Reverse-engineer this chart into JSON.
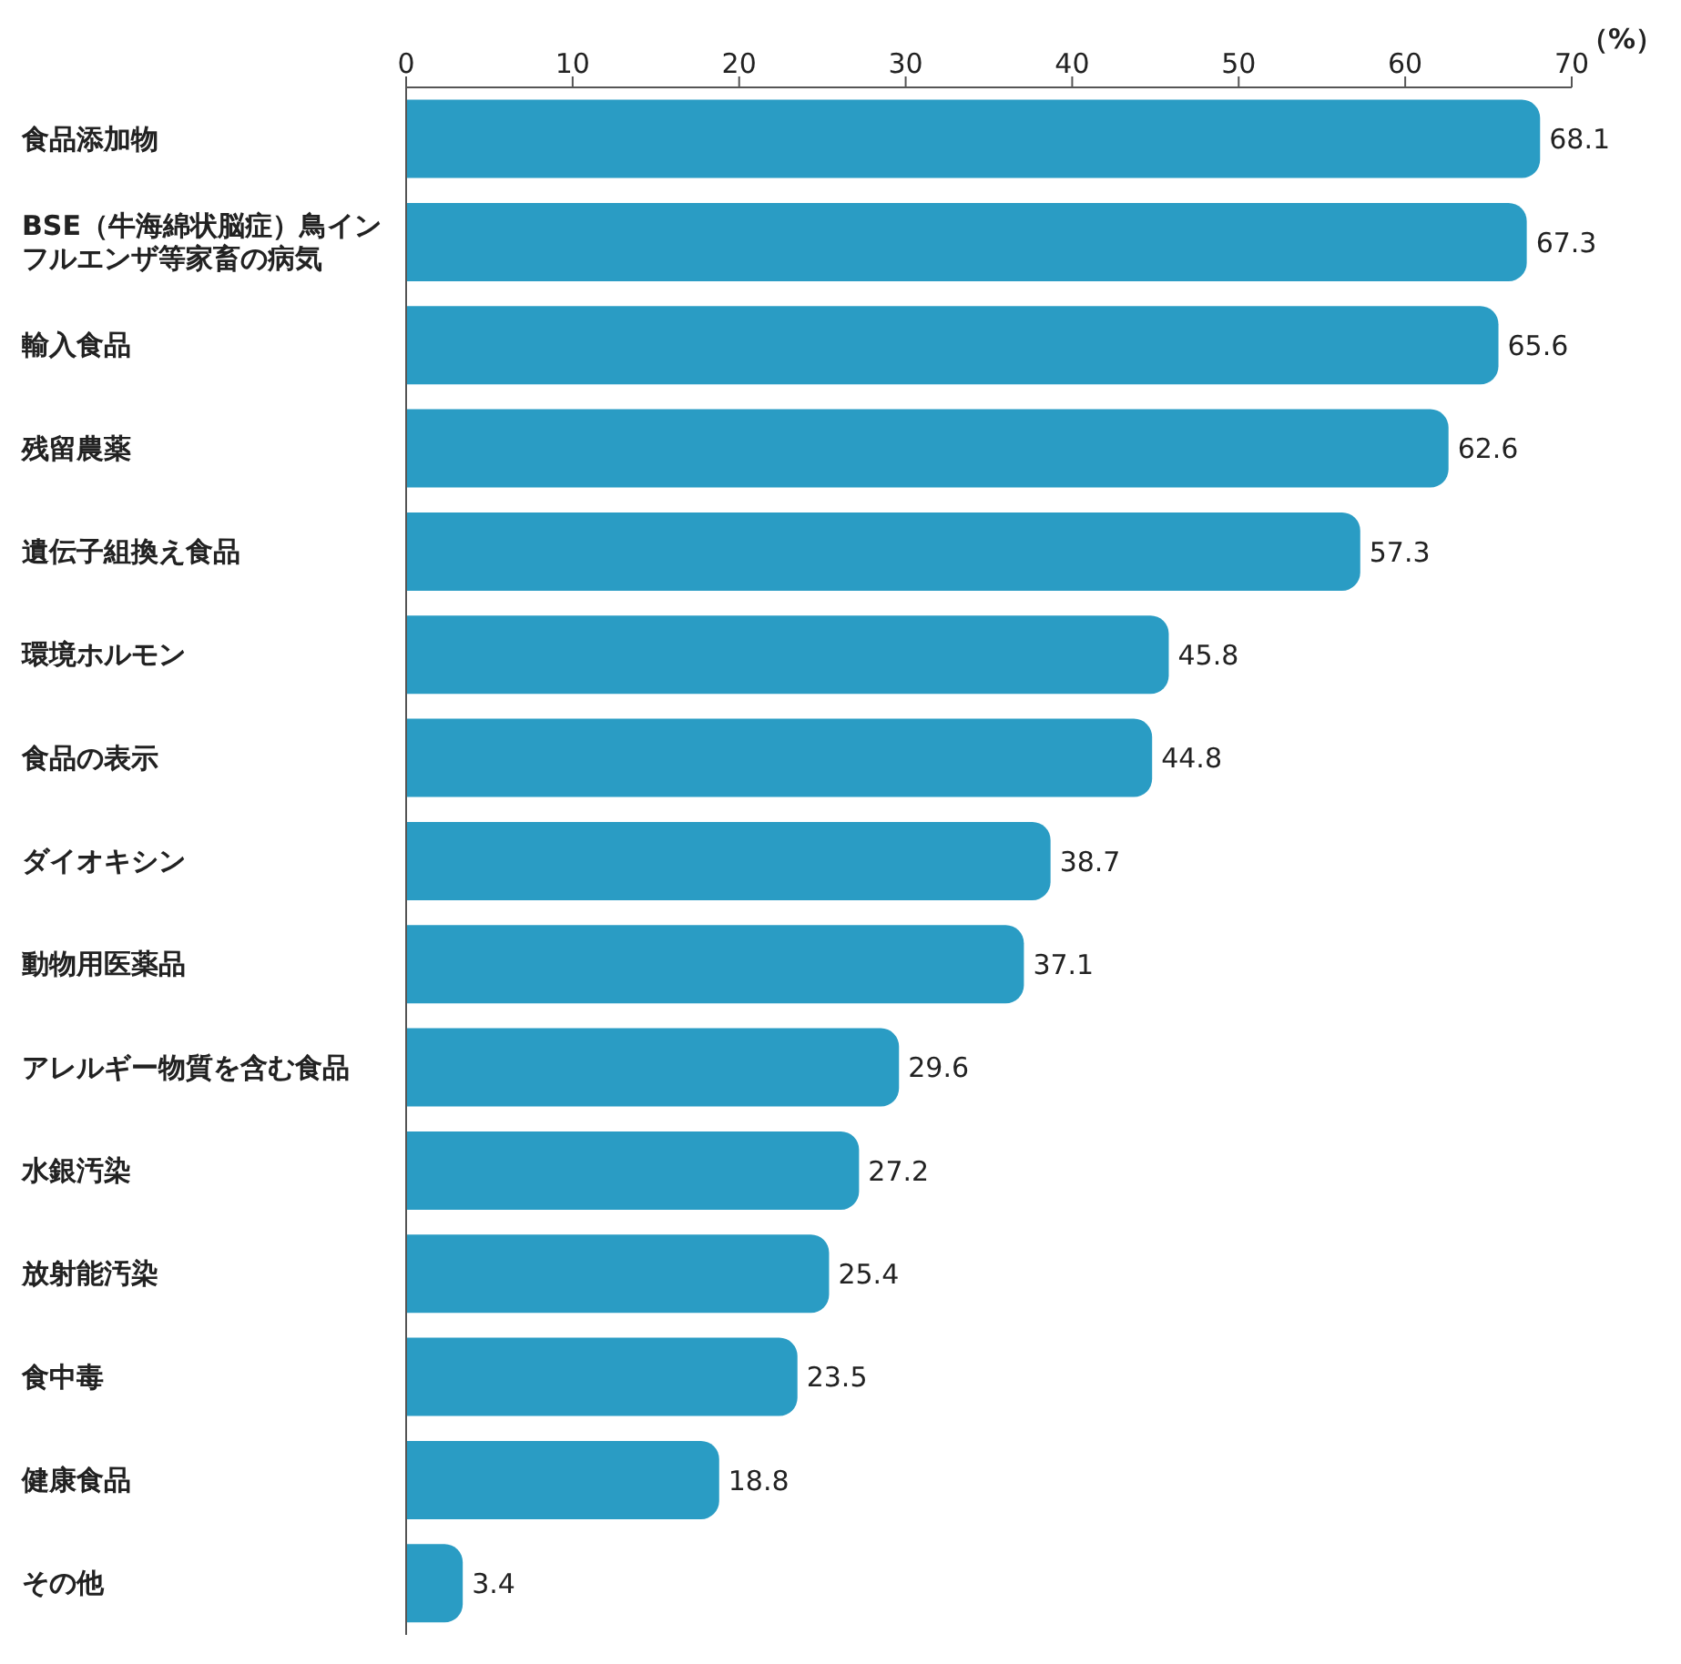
{
  "chart_data": {
    "type": "bar",
    "orientation": "horizontal",
    "xlabel": "（%）",
    "categories": [
      "食品添加物",
      "BSE（牛海綿状脳症）鳥インフルエンザ等家畜の病気",
      "輸入食品",
      "残留農薬",
      "遺伝子組換え食品",
      "環境ホルモン",
      "食品の表示",
      "ダイオキシン",
      "動物用医薬品",
      "アレルギー物質を含む食品",
      "水銀汚染",
      "放射能汚染",
      "食中毒",
      "健康食品",
      "その他"
    ],
    "values": [
      68.1,
      67.3,
      65.6,
      62.6,
      57.3,
      45.8,
      44.8,
      38.7,
      37.1,
      29.6,
      27.2,
      25.4,
      23.5,
      18.8,
      3.4
    ],
    "color": "#2a9cc4",
    "xlim": [
      0,
      70
    ],
    "xticks": [
      0,
      10,
      20,
      30,
      40,
      50,
      60,
      70
    ],
    "grid": false,
    "data_labels": true
  }
}
